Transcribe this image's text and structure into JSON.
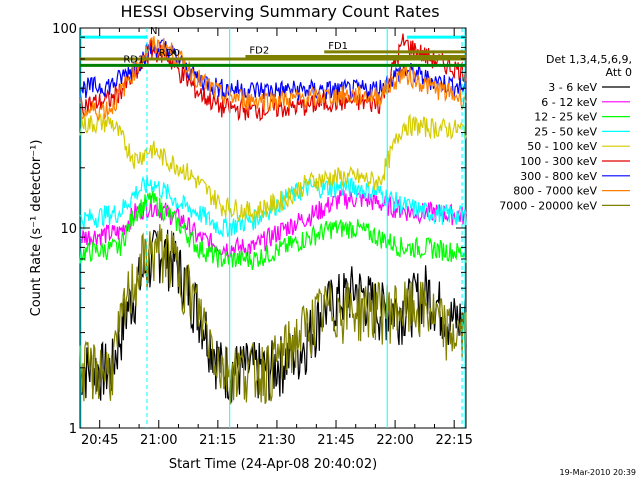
{
  "colors": {
    "3-6": "#000000",
    "6-12": "#ff00ff",
    "12-25": "#00ff00",
    "25-50": "#00ffff",
    "50-100": "#d4cc00",
    "100-300": "#e00000",
    "300-800": "#0000ff",
    "800-7000": "#ff8000",
    "7000-20000": "#808000",
    "night": "#00ffff",
    "saa": "#00ffff",
    "flare_bar": "#808000",
    "sun_bar": "#008000"
  },
  "chart_data": {
    "type": "line",
    "title": "HESSI Observing Summary Count Rates",
    "xlabel": "Start Time (24-Apr-08 20:40:02)",
    "ylabel": "Count Rate (s⁻¹ detector⁻¹)",
    "yscale": "log",
    "ylim": [
      1,
      100
    ],
    "xlim_minutes_after_2040": [
      0,
      98
    ],
    "x_ticks": [
      "20:45",
      "21:00",
      "21:15",
      "21:30",
      "21:45",
      "22:00",
      "22:15"
    ],
    "y_ticks": [
      "1",
      "10",
      "100"
    ],
    "legend_header": [
      "Det 1,3,4,5,6,9,",
      "Att 0"
    ],
    "legend_placement": "right-outside",
    "series": [
      {
        "name": "3 - 6 keV",
        "key": "3-6",
        "points": [
          [
            0,
            2
          ],
          [
            8,
            2
          ],
          [
            12,
            4
          ],
          [
            16,
            6
          ],
          [
            20,
            8
          ],
          [
            24,
            7
          ],
          [
            30,
            4
          ],
          [
            36,
            2
          ],
          [
            48,
            2
          ],
          [
            56,
            2.5
          ],
          [
            62,
            4
          ],
          [
            70,
            5
          ],
          [
            76,
            4
          ],
          [
            82,
            4
          ],
          [
            88,
            5
          ],
          [
            94,
            3.5
          ],
          [
            98,
            3.5
          ]
        ]
      },
      {
        "name": "6 - 12 keV",
        "key": "6-12",
        "points": [
          [
            0,
            9
          ],
          [
            10,
            9.5
          ],
          [
            14,
            12
          ],
          [
            18,
            13
          ],
          [
            22,
            12
          ],
          [
            26,
            11
          ],
          [
            30,
            9
          ],
          [
            36,
            8
          ],
          [
            44,
            8
          ],
          [
            52,
            10
          ],
          [
            60,
            12
          ],
          [
            66,
            14
          ],
          [
            72,
            14
          ],
          [
            78,
            13
          ],
          [
            84,
            12
          ],
          [
            90,
            12
          ],
          [
            98,
            11.5
          ]
        ]
      },
      {
        "name": "12 - 25 keV",
        "key": "12-25",
        "points": [
          [
            0,
            7.5
          ],
          [
            10,
            8
          ],
          [
            14,
            12
          ],
          [
            18,
            14
          ],
          [
            22,
            12
          ],
          [
            26,
            10
          ],
          [
            30,
            8
          ],
          [
            36,
            7
          ],
          [
            44,
            7
          ],
          [
            52,
            8
          ],
          [
            58,
            9
          ],
          [
            64,
            10
          ],
          [
            70,
            10
          ],
          [
            76,
            9
          ],
          [
            82,
            8
          ],
          [
            88,
            8
          ],
          [
            98,
            7.5
          ]
        ]
      },
      {
        "name": "25 - 50 keV",
        "key": "25-50",
        "points": [
          [
            0,
            11
          ],
          [
            10,
            12
          ],
          [
            14,
            15
          ],
          [
            18,
            17
          ],
          [
            22,
            15
          ],
          [
            26,
            13
          ],
          [
            30,
            12
          ],
          [
            36,
            10
          ],
          [
            44,
            11
          ],
          [
            52,
            14
          ],
          [
            58,
            16
          ],
          [
            64,
            16
          ],
          [
            70,
            16
          ],
          [
            76,
            15
          ],
          [
            82,
            13
          ],
          [
            88,
            12
          ],
          [
            98,
            11.5
          ]
        ]
      },
      {
        "name": "50 - 100 keV",
        "key": "50-100",
        "points": [
          [
            0,
            33
          ],
          [
            8,
            34
          ],
          [
            14,
            22
          ],
          [
            18,
            25
          ],
          [
            22,
            22
          ],
          [
            26,
            20
          ],
          [
            30,
            17
          ],
          [
            36,
            13
          ],
          [
            44,
            12
          ],
          [
            52,
            14
          ],
          [
            58,
            17
          ],
          [
            64,
            18
          ],
          [
            70,
            18
          ],
          [
            76,
            17
          ],
          [
            82,
            33
          ],
          [
            88,
            32
          ],
          [
            98,
            31
          ]
        ]
      },
      {
        "name": "100 - 300 keV",
        "key": "100-300",
        "points": [
          [
            0,
            41
          ],
          [
            8,
            44
          ],
          [
            14,
            58
          ],
          [
            18,
            78
          ],
          [
            22,
            73
          ],
          [
            26,
            58
          ],
          [
            30,
            48
          ],
          [
            36,
            40
          ],
          [
            44,
            39
          ],
          [
            52,
            40
          ],
          [
            58,
            41
          ],
          [
            64,
            43
          ],
          [
            70,
            43
          ],
          [
            76,
            42
          ],
          [
            82,
            85
          ],
          [
            88,
            72
          ],
          [
            98,
            60
          ]
        ]
      },
      {
        "name": "300 - 800 keV",
        "key": "300-800",
        "points": [
          [
            0,
            50
          ],
          [
            8,
            52
          ],
          [
            14,
            64
          ],
          [
            18,
            80
          ],
          [
            22,
            80
          ],
          [
            26,
            66
          ],
          [
            30,
            56
          ],
          [
            36,
            50
          ],
          [
            44,
            49
          ],
          [
            52,
            49
          ],
          [
            58,
            49
          ],
          [
            64,
            49
          ],
          [
            70,
            49
          ],
          [
            76,
            50
          ],
          [
            82,
            62
          ],
          [
            88,
            56
          ],
          [
            98,
            50
          ]
        ]
      },
      {
        "name": "800 - 7000 keV",
        "key": "800-7000",
        "points": [
          [
            0,
            38
          ],
          [
            8,
            40
          ],
          [
            14,
            63
          ],
          [
            18,
            82
          ],
          [
            22,
            80
          ],
          [
            26,
            68
          ],
          [
            30,
            56
          ],
          [
            36,
            46
          ],
          [
            44,
            44
          ],
          [
            52,
            44
          ],
          [
            58,
            45
          ],
          [
            64,
            46
          ],
          [
            70,
            46
          ],
          [
            76,
            46
          ],
          [
            82,
            60
          ],
          [
            88,
            52
          ],
          [
            98,
            44
          ]
        ]
      },
      {
        "name": "7000 - 20000 keV",
        "key": "7000-20000",
        "points": [
          [
            0,
            2
          ],
          [
            8,
            2
          ],
          [
            12,
            4.5
          ],
          [
            16,
            7
          ],
          [
            20,
            8
          ],
          [
            24,
            7
          ],
          [
            30,
            4
          ],
          [
            36,
            2
          ],
          [
            48,
            2
          ],
          [
            56,
            3
          ],
          [
            62,
            4
          ],
          [
            70,
            4
          ],
          [
            76,
            4
          ],
          [
            82,
            4
          ],
          [
            88,
            4
          ],
          [
            94,
            3
          ],
          [
            98,
            3
          ]
        ]
      }
    ],
    "bars": [
      {
        "label": "N",
        "key": "night",
        "from": 0,
        "to": 17,
        "value": 90
      },
      {
        "label": "FD1",
        "key": "flare_bar",
        "from": 62,
        "to": 98,
        "value": 76
      },
      {
        "label": "FD2",
        "key": "flare_bar",
        "from": 42,
        "to": 98,
        "value": 72
      },
      {
        "label": "RD0",
        "key": "flare_bar",
        "from": 0,
        "to": 98,
        "value": 70
      },
      {
        "label": "RD1",
        "key": "sun_bar",
        "from": 0,
        "to": 98,
        "value": 65
      }
    ],
    "vlines": [
      {
        "key": "saa",
        "at": 17,
        "style": "dashed"
      },
      {
        "key": "saa",
        "at": 38,
        "style": "solid"
      },
      {
        "key": "saa",
        "at": 78,
        "style": "solid"
      },
      {
        "key": "saa",
        "at": 97,
        "style": "dashed"
      }
    ],
    "timestamp": "19-Mar-2010 20:39"
  }
}
